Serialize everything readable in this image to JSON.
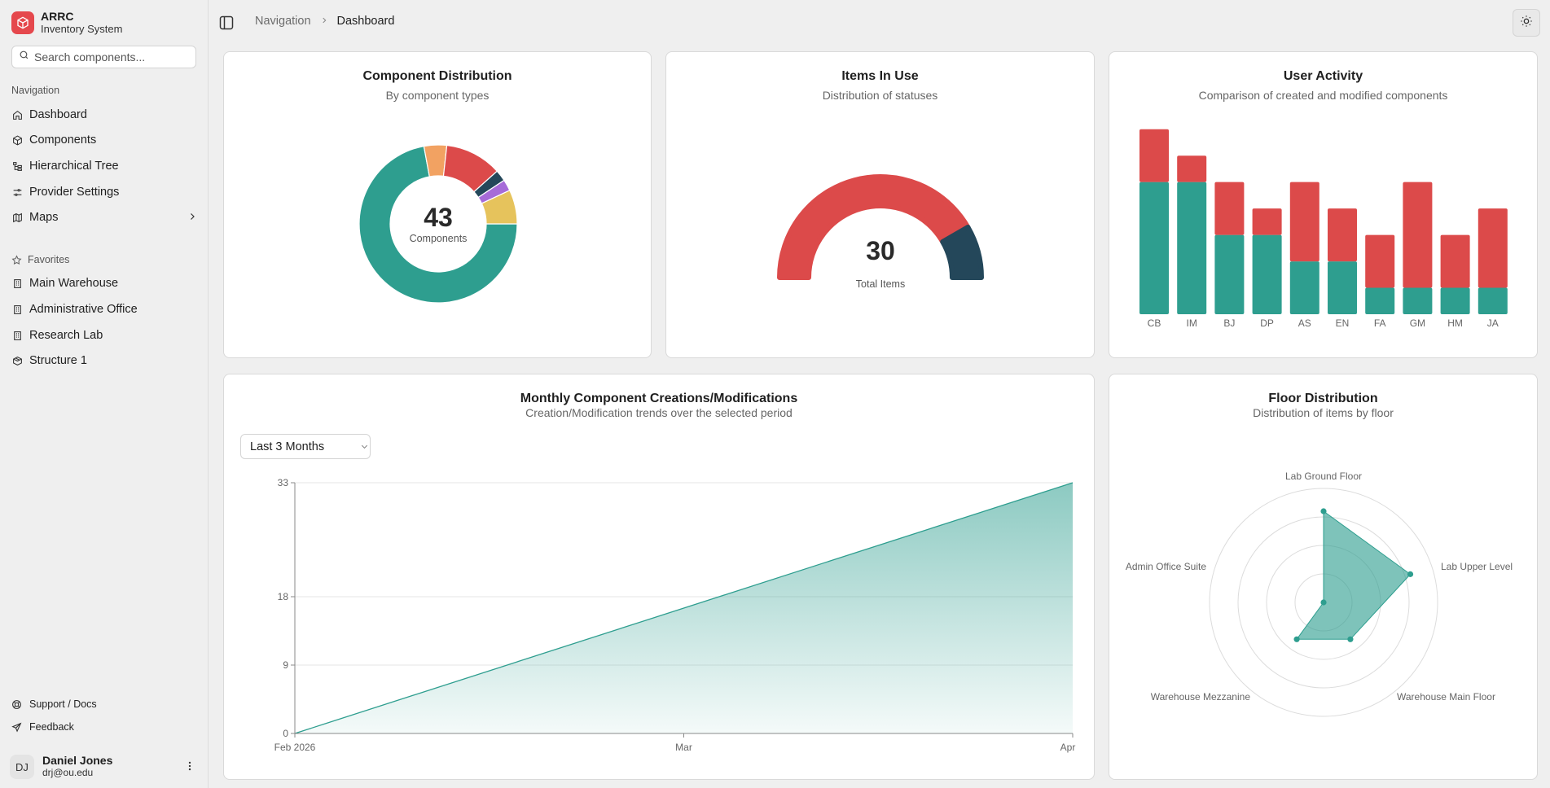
{
  "app": {
    "name": "ARRC",
    "subtitle": "Inventory System"
  },
  "search": {
    "placeholder": "Search components..."
  },
  "sidebar": {
    "nav_label": "Navigation",
    "items": [
      {
        "label": "Dashboard",
        "icon": "home-icon"
      },
      {
        "label": "Components",
        "icon": "box-icon"
      },
      {
        "label": "Hierarchical Tree",
        "icon": "tree-icon"
      },
      {
        "label": "Provider Settings",
        "icon": "sliders-icon"
      },
      {
        "label": "Maps",
        "icon": "map-icon"
      }
    ],
    "favorites_label": "Favorites",
    "favorites": [
      {
        "label": "Main Warehouse",
        "icon": "building-icon"
      },
      {
        "label": "Administrative Office",
        "icon": "building-icon"
      },
      {
        "label": "Research Lab",
        "icon": "building-icon"
      },
      {
        "label": "Structure 1",
        "icon": "package-icon"
      }
    ],
    "footer": [
      {
        "label": "Support / Docs",
        "icon": "lifebuoy-icon"
      },
      {
        "label": "Feedback",
        "icon": "send-icon"
      }
    ]
  },
  "user": {
    "initials": "DJ",
    "name": "Daniel Jones",
    "email": "drj@ou.edu"
  },
  "breadcrumb": {
    "parent": "Navigation",
    "current": "Dashboard"
  },
  "colors": {
    "teal": "#2e9e8f",
    "red": "#dc4a4a",
    "navy": "#24475a",
    "yellow": "#e6c35c",
    "purple": "#a66bd8",
    "orange": "#f2a262",
    "brand": "#e5484d"
  },
  "cards": {
    "distribution": {
      "title": "Component Distribution",
      "subtitle": "By component types",
      "center_value": "43",
      "center_label": "Components"
    },
    "items_in_use": {
      "title": "Items In Use",
      "subtitle": "Distribution of statuses",
      "center_value": "30",
      "center_label": "Total Items"
    },
    "user_activity": {
      "title": "User Activity",
      "subtitle": "Comparison of created and modified components"
    },
    "monthly": {
      "title": "Monthly Component Creations/Modifications",
      "subtitle": "Creation/Modification trends over the selected period",
      "range": "Last 3 Months"
    },
    "floor": {
      "title": "Floor Distribution",
      "subtitle": "Distribution of items by floor"
    }
  },
  "chart_data": [
    {
      "type": "pie",
      "title": "Component Distribution",
      "total": 43,
      "slices": [
        {
          "value": 31,
          "color": "#2e9e8f"
        },
        {
          "value": 2,
          "color": "#f2a262"
        },
        {
          "value": 5,
          "color": "#dc4a4a"
        },
        {
          "value": 1,
          "color": "#24475a"
        },
        {
          "value": 1,
          "color": "#a66bd8"
        },
        {
          "value": 3,
          "color": "#e6c35c"
        }
      ]
    },
    {
      "type": "pie",
      "title": "Items In Use",
      "total": 30,
      "slices": [
        {
          "value": 25,
          "color": "#dc4a4a"
        },
        {
          "value": 5,
          "color": "#24475a"
        }
      ]
    },
    {
      "type": "bar",
      "title": "User Activity",
      "categories": [
        "CB",
        "IM",
        "BJ",
        "DP",
        "AS",
        "EN",
        "FA",
        "GM",
        "HM",
        "JA"
      ],
      "series": [
        {
          "values": [
            5,
            5,
            3,
            3,
            2,
            2,
            1,
            1,
            1,
            1
          ],
          "color": "#2e9e8f"
        },
        {
          "values": [
            2,
            1,
            2,
            1,
            3,
            2,
            2,
            4,
            2,
            3
          ],
          "color": "#dc4a4a"
        }
      ],
      "stacked": true,
      "ylim": [
        0,
        7.3
      ]
    },
    {
      "type": "area",
      "title": "Monthly Component Creations/Modifications",
      "x": [
        "Feb 2026",
        "Mar",
        "Apr"
      ],
      "y": [
        0,
        16.5,
        33
      ],
      "yticks": [
        0,
        9,
        18,
        33
      ],
      "ylim": [
        0,
        33
      ],
      "color": "#2e9e8f"
    },
    {
      "type": "radar",
      "title": "Floor Distribution",
      "axes": [
        "Lab Ground Floor",
        "Lab Upper Level",
        "Warehouse Main Floor",
        "Warehouse Mezzanine",
        "Admin Office Suite"
      ],
      "values": [
        0.8,
        0.8,
        0.4,
        0.4,
        0.0
      ],
      "max": 1,
      "rings": 4,
      "color": "#2e9e8f"
    }
  ]
}
